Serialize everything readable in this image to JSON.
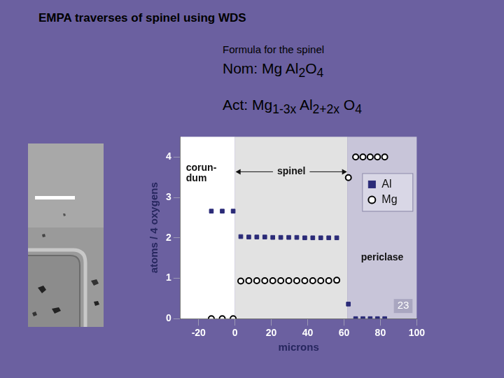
{
  "title": "EMPA traverses of spinel using WDS",
  "formula": {
    "heading": "Formula for the spinel",
    "nominal": "Nom: Mg Al2O4",
    "actual": "Act: Mg1-3x Al2+2x O4"
  },
  "slide_number": "23",
  "chart_data": {
    "type": "scatter",
    "x_label": "microns",
    "y_label": "atoms / 4 oxygens",
    "xlim": [
      -30,
      100
    ],
    "xticks": [
      -20,
      0,
      20,
      40,
      60,
      80,
      100
    ],
    "ylim": [
      0,
      4.5
    ],
    "yticks": [
      0,
      1,
      2,
      3,
      4
    ],
    "grid": false,
    "legend": "upper right",
    "regions": [
      {
        "label": "corun-\ndum",
        "from": -30,
        "to": 0,
        "color": "#ffffff"
      },
      {
        "label": "spinel",
        "from": 0,
        "to": 62,
        "color": "#e2e2e2"
      },
      {
        "label": "periclase",
        "from": 62,
        "to": 100,
        "color": "#c8c5d9"
      }
    ],
    "series": [
      {
        "name": "Al",
        "color": "#2b2b78",
        "marker": "square",
        "x": [
          -13,
          -7,
          -1,
          3.2,
          7.6,
          12,
          16.4,
          20.8,
          25.2,
          29.6,
          34,
          38.4,
          42.8,
          47.2,
          51.6,
          56,
          62.4,
          66.4,
          70.4,
          74.4,
          78.4,
          82.4
        ],
        "values": [
          2.66,
          2.66,
          2.66,
          2.03,
          2.02,
          2.02,
          2.02,
          2.01,
          2.01,
          2.01,
          2.01,
          2.0,
          2.0,
          2.0,
          2.0,
          2.0,
          0.36,
          0,
          0,
          0,
          0,
          0
        ]
      },
      {
        "name": "Mg",
        "color": "#000000",
        "marker": "circle_open",
        "x": [
          -13,
          -7,
          -1,
          3.2,
          7.6,
          12,
          16.4,
          20.8,
          25.2,
          29.6,
          34,
          38.4,
          42.8,
          47.2,
          51.6,
          56,
          62.4,
          66.4,
          70.4,
          74.4,
          78.4,
          82.4
        ],
        "values": [
          0,
          0,
          0,
          0.93,
          0.94,
          0.94,
          0.94,
          0.94,
          0.94,
          0.94,
          0.94,
          0.94,
          0.94,
          0.94,
          0.94,
          0.95,
          3.49,
          4,
          4,
          4,
          4,
          4
        ]
      }
    ]
  }
}
